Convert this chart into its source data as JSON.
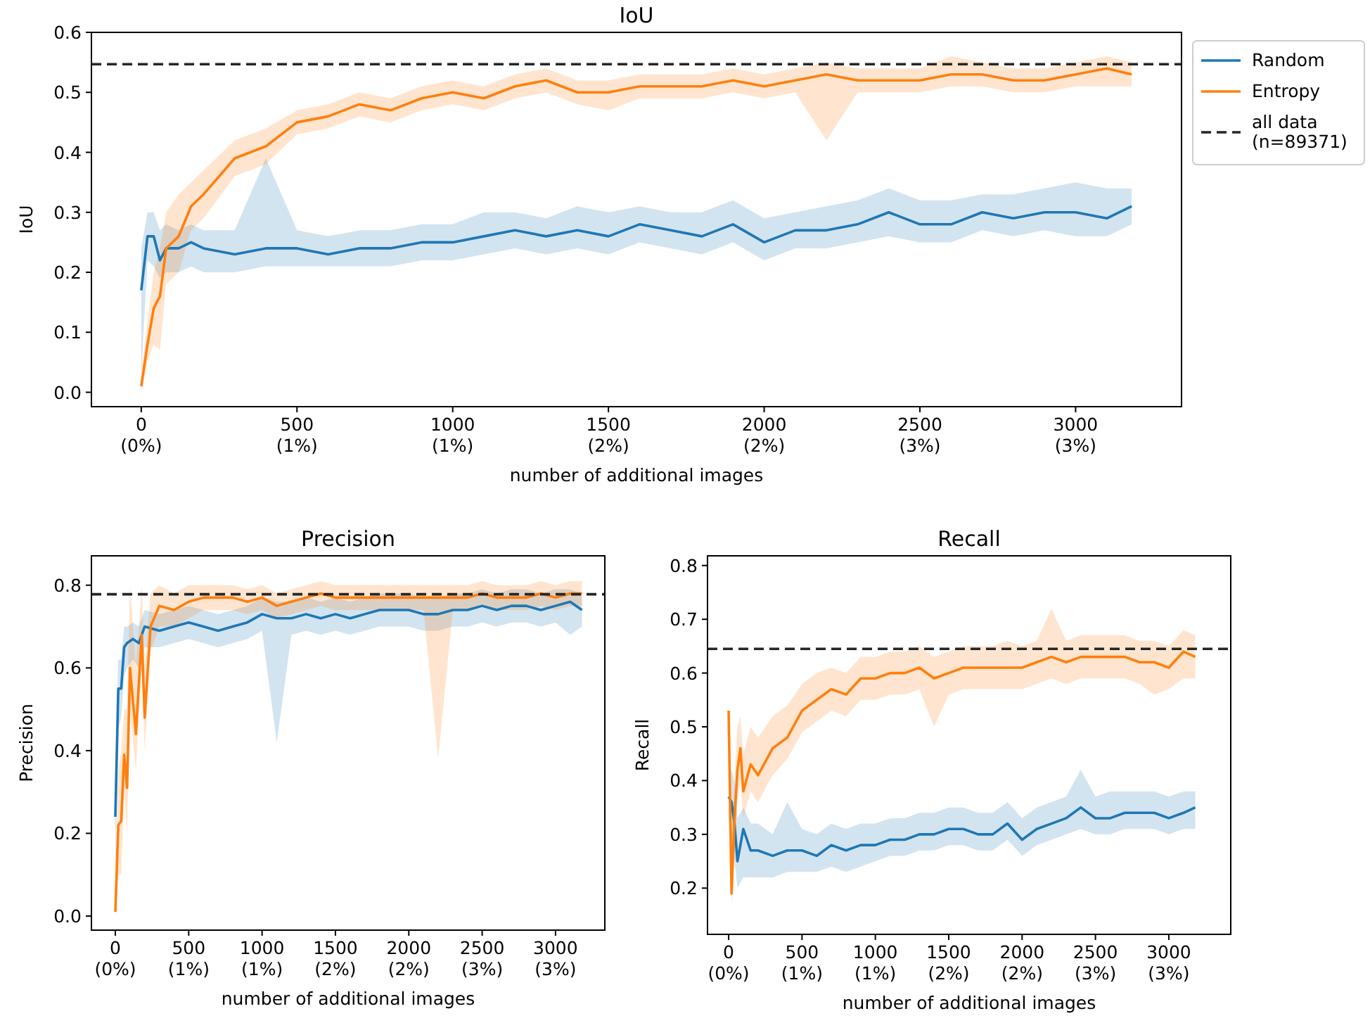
{
  "chart_data": [
    {
      "type": "line",
      "title": "IoU",
      "xlabel": "number of additional images",
      "ylabel": "IoU",
      "xlim": [
        -160,
        3340
      ],
      "ylim": [
        -0.024,
        0.6
      ],
      "xticks": [
        0,
        500,
        1000,
        1500,
        2000,
        2500,
        3000
      ],
      "annotations": [
        "(0%)",
        "(1%)",
        "(1%)",
        "(2%)",
        "(2%)",
        "(3%)",
        "(3%)"
      ],
      "yticks": [
        {
          "value": 0,
          "label": "0.0"
        },
        0.1,
        0.2,
        0.3,
        0.4,
        0.5,
        0.6
      ],
      "grid": false,
      "legend": "right",
      "series": [
        {
          "name": "all data\n(n=89371)",
          "color": "#262626",
          "line_style": "dashed",
          "x": [
            -160,
            3340
          ],
          "values": [
            0.547,
            0.547
          ]
        },
        {
          "name": "Random",
          "color": "#1f77b4",
          "x": [
            0,
            20,
            40,
            60,
            80,
            120,
            160,
            200,
            300,
            400,
            500,
            600,
            700,
            800,
            900,
            1000,
            1100,
            1200,
            1300,
            1400,
            1500,
            1600,
            1700,
            1800,
            1900,
            2000,
            2100,
            2200,
            2300,
            2400,
            2500,
            2600,
            2700,
            2800,
            2900,
            3000,
            3100,
            3180
          ],
          "values": [
            0.17,
            0.26,
            0.26,
            0.22,
            0.24,
            0.24,
            0.25,
            0.24,
            0.23,
            0.24,
            0.24,
            0.23,
            0.24,
            0.24,
            0.25,
            0.25,
            0.26,
            0.27,
            0.26,
            0.27,
            0.26,
            0.28,
            0.27,
            0.26,
            0.28,
            0.25,
            0.27,
            0.27,
            0.28,
            0.3,
            0.28,
            0.28,
            0.3,
            0.29,
            0.3,
            0.3,
            0.29,
            0.31
          ],
          "lower": [
            0.03,
            0.22,
            0.21,
            0.19,
            0.2,
            0.2,
            0.21,
            0.2,
            0.2,
            0.21,
            0.21,
            0.21,
            0.21,
            0.21,
            0.22,
            0.22,
            0.23,
            0.24,
            0.23,
            0.24,
            0.23,
            0.25,
            0.24,
            0.23,
            0.25,
            0.22,
            0.24,
            0.24,
            0.25,
            0.26,
            0.25,
            0.25,
            0.27,
            0.26,
            0.27,
            0.26,
            0.26,
            0.28
          ],
          "upper": [
            0.24,
            0.3,
            0.3,
            0.27,
            0.28,
            0.27,
            0.28,
            0.27,
            0.27,
            0.39,
            0.27,
            0.26,
            0.27,
            0.27,
            0.28,
            0.28,
            0.3,
            0.3,
            0.29,
            0.31,
            0.3,
            0.31,
            0.3,
            0.3,
            0.32,
            0.29,
            0.3,
            0.31,
            0.32,
            0.34,
            0.32,
            0.32,
            0.33,
            0.33,
            0.34,
            0.35,
            0.34,
            0.34
          ]
        },
        {
          "name": "Entropy",
          "color": "#ff7f0e",
          "x": [
            0,
            20,
            40,
            60,
            80,
            120,
            160,
            200,
            300,
            400,
            500,
            600,
            700,
            800,
            900,
            1000,
            1100,
            1200,
            1300,
            1400,
            1500,
            1600,
            1700,
            1800,
            1900,
            2000,
            2100,
            2200,
            2300,
            2400,
            2500,
            2600,
            2700,
            2800,
            2900,
            3000,
            3100,
            3180
          ],
          "values": [
            0.01,
            0.08,
            0.14,
            0.16,
            0.24,
            0.26,
            0.31,
            0.33,
            0.39,
            0.41,
            0.45,
            0.46,
            0.48,
            0.47,
            0.49,
            0.5,
            0.49,
            0.51,
            0.52,
            0.5,
            0.5,
            0.51,
            0.51,
            0.51,
            0.52,
            0.51,
            0.52,
            0.53,
            0.52,
            0.52,
            0.52,
            0.53,
            0.53,
            0.52,
            0.52,
            0.53,
            0.54,
            0.53
          ],
          "lower": [
            0.0,
            0.05,
            0.08,
            0.07,
            0.18,
            0.2,
            0.27,
            0.29,
            0.36,
            0.38,
            0.43,
            0.44,
            0.46,
            0.45,
            0.47,
            0.48,
            0.47,
            0.49,
            0.5,
            0.48,
            0.47,
            0.49,
            0.49,
            0.49,
            0.5,
            0.49,
            0.5,
            0.42,
            0.5,
            0.5,
            0.5,
            0.51,
            0.51,
            0.5,
            0.5,
            0.51,
            0.51,
            0.51
          ],
          "upper": [
            0.03,
            0.12,
            0.2,
            0.24,
            0.3,
            0.33,
            0.35,
            0.37,
            0.42,
            0.44,
            0.47,
            0.48,
            0.5,
            0.49,
            0.51,
            0.52,
            0.51,
            0.53,
            0.54,
            0.52,
            0.52,
            0.53,
            0.53,
            0.53,
            0.54,
            0.53,
            0.54,
            0.55,
            0.54,
            0.54,
            0.54,
            0.56,
            0.55,
            0.54,
            0.54,
            0.55,
            0.56,
            0.55
          ]
        }
      ]
    },
    {
      "type": "line",
      "title": "Precision",
      "xlabel": "number of additional images",
      "ylabel": "Precision",
      "xlim": [
        -163,
        3336
      ],
      "ylim": [
        -0.034,
        0.871
      ],
      "xticks": [
        0,
        500,
        1000,
        1500,
        2000,
        2500,
        3000
      ],
      "annotations": [
        "(0%)",
        "(1%)",
        "(1%)",
        "(2%)",
        "(2%)",
        "(3%)",
        "(3%)"
      ],
      "yticks": [
        {
          "value": 0,
          "label": "0.0"
        },
        0.2,
        0.4,
        0.6,
        0.8
      ],
      "grid": false,
      "ref_lines": [
        {
          "axis": "y",
          "value": 0.778,
          "color": "#262626",
          "line_style": "dashed"
        }
      ],
      "series": [
        {
          "color": "#1f77b4",
          "x": [
            0,
            20,
            40,
            60,
            80,
            120,
            160,
            200,
            300,
            400,
            500,
            600,
            700,
            800,
            900,
            1000,
            1100,
            1200,
            1300,
            1400,
            1500,
            1600,
            1700,
            1800,
            1900,
            2000,
            2100,
            2200,
            2300,
            2400,
            2500,
            2600,
            2700,
            2800,
            2900,
            3000,
            3100,
            3180
          ],
          "values": [
            0.24,
            0.55,
            0.55,
            0.65,
            0.66,
            0.67,
            0.66,
            0.7,
            0.69,
            0.7,
            0.71,
            0.7,
            0.69,
            0.7,
            0.71,
            0.73,
            0.72,
            0.72,
            0.73,
            0.72,
            0.73,
            0.72,
            0.73,
            0.74,
            0.74,
            0.74,
            0.73,
            0.73,
            0.74,
            0.74,
            0.75,
            0.74,
            0.75,
            0.75,
            0.74,
            0.75,
            0.76,
            0.74
          ],
          "lower": [
            0.1,
            0.45,
            0.48,
            0.58,
            0.6,
            0.62,
            0.6,
            0.65,
            0.65,
            0.66,
            0.67,
            0.66,
            0.65,
            0.66,
            0.67,
            0.69,
            0.42,
            0.68,
            0.69,
            0.68,
            0.69,
            0.68,
            0.69,
            0.7,
            0.7,
            0.7,
            0.69,
            0.69,
            0.7,
            0.7,
            0.71,
            0.7,
            0.71,
            0.71,
            0.7,
            0.71,
            0.68,
            0.7
          ],
          "upper": [
            0.35,
            0.62,
            0.62,
            0.7,
            0.7,
            0.71,
            0.7,
            0.74,
            0.73,
            0.74,
            0.75,
            0.74,
            0.73,
            0.74,
            0.75,
            0.77,
            0.76,
            0.76,
            0.77,
            0.76,
            0.77,
            0.76,
            0.77,
            0.78,
            0.78,
            0.78,
            0.77,
            0.77,
            0.78,
            0.78,
            0.79,
            0.78,
            0.79,
            0.79,
            0.78,
            0.79,
            0.79,
            0.78
          ]
        },
        {
          "color": "#ff7f0e",
          "x": [
            0,
            20,
            40,
            60,
            80,
            100,
            140,
            180,
            200,
            240,
            300,
            400,
            500,
            600,
            700,
            800,
            900,
            1000,
            1100,
            1200,
            1300,
            1400,
            1500,
            1600,
            1700,
            1800,
            1900,
            2000,
            2100,
            2200,
            2300,
            2400,
            2500,
            2600,
            2700,
            2800,
            2900,
            3000,
            3100,
            3180
          ],
          "values": [
            0.01,
            0.22,
            0.23,
            0.39,
            0.31,
            0.6,
            0.44,
            0.68,
            0.48,
            0.7,
            0.75,
            0.74,
            0.76,
            0.77,
            0.77,
            0.77,
            0.76,
            0.77,
            0.75,
            0.76,
            0.77,
            0.78,
            0.77,
            0.77,
            0.77,
            0.77,
            0.77,
            0.77,
            0.77,
            0.77,
            0.77,
            0.77,
            0.78,
            0.77,
            0.77,
            0.77,
            0.78,
            0.77,
            0.78,
            0.78
          ],
          "lower": [
            0.0,
            0.1,
            0.1,
            0.3,
            0.2,
            0.5,
            0.35,
            0.6,
            0.4,
            0.64,
            0.7,
            0.7,
            0.72,
            0.74,
            0.74,
            0.74,
            0.73,
            0.74,
            0.72,
            0.73,
            0.74,
            0.75,
            0.74,
            0.74,
            0.74,
            0.74,
            0.74,
            0.74,
            0.74,
            0.38,
            0.74,
            0.74,
            0.75,
            0.74,
            0.74,
            0.74,
            0.75,
            0.74,
            0.75,
            0.75
          ],
          "upper": [
            0.05,
            0.35,
            0.4,
            0.5,
            0.5,
            0.8,
            0.6,
            0.8,
            0.6,
            0.78,
            0.8,
            0.78,
            0.8,
            0.8,
            0.8,
            0.8,
            0.79,
            0.8,
            0.78,
            0.79,
            0.8,
            0.81,
            0.8,
            0.8,
            0.8,
            0.8,
            0.8,
            0.8,
            0.8,
            0.8,
            0.8,
            0.8,
            0.81,
            0.8,
            0.8,
            0.8,
            0.81,
            0.8,
            0.81,
            0.81
          ]
        }
      ]
    },
    {
      "type": "line",
      "title": "Recall",
      "xlabel": "number of additional images",
      "ylabel": "Recall",
      "xlim": [
        -144,
        3422
      ],
      "ylim": [
        0.114,
        0.818
      ],
      "xticks": [
        0,
        500,
        1000,
        1500,
        2000,
        2500,
        3000
      ],
      "annotations": [
        "(0%)",
        "(1%)",
        "(1%)",
        "(2%)",
        "(2%)",
        "(3%)",
        "(3%)"
      ],
      "yticks": [
        0.2,
        0.3,
        0.4,
        0.5,
        0.6,
        0.7,
        0.8
      ],
      "grid": false,
      "ref_lines": [
        {
          "axis": "y",
          "value": 0.645,
          "color": "#262626",
          "line_style": "dashed"
        }
      ],
      "series": [
        {
          "color": "#1f77b4",
          "x": [
            0,
            20,
            40,
            60,
            100,
            150,
            200,
            300,
            400,
            500,
            600,
            700,
            800,
            900,
            1000,
            1100,
            1200,
            1300,
            1400,
            1500,
            1600,
            1700,
            1800,
            1900,
            2000,
            2100,
            2200,
            2300,
            2400,
            2500,
            2600,
            2700,
            2800,
            2900,
            3000,
            3100,
            3180
          ],
          "values": [
            0.37,
            0.36,
            0.32,
            0.25,
            0.31,
            0.27,
            0.27,
            0.26,
            0.27,
            0.27,
            0.26,
            0.28,
            0.27,
            0.28,
            0.28,
            0.29,
            0.29,
            0.3,
            0.3,
            0.31,
            0.31,
            0.3,
            0.3,
            0.32,
            0.29,
            0.31,
            0.32,
            0.33,
            0.35,
            0.33,
            0.33,
            0.34,
            0.34,
            0.34,
            0.33,
            0.34,
            0.35
          ],
          "lower": [
            0.33,
            0.3,
            0.25,
            0.2,
            0.22,
            0.22,
            0.22,
            0.22,
            0.23,
            0.23,
            0.23,
            0.24,
            0.23,
            0.24,
            0.25,
            0.26,
            0.26,
            0.27,
            0.27,
            0.28,
            0.28,
            0.27,
            0.27,
            0.29,
            0.26,
            0.28,
            0.29,
            0.3,
            0.31,
            0.3,
            0.3,
            0.31,
            0.31,
            0.31,
            0.3,
            0.31,
            0.31
          ],
          "upper": [
            0.4,
            0.42,
            0.4,
            0.33,
            0.35,
            0.32,
            0.32,
            0.3,
            0.36,
            0.31,
            0.3,
            0.32,
            0.31,
            0.32,
            0.32,
            0.33,
            0.33,
            0.34,
            0.34,
            0.35,
            0.35,
            0.34,
            0.34,
            0.36,
            0.33,
            0.35,
            0.36,
            0.37,
            0.42,
            0.37,
            0.38,
            0.38,
            0.38,
            0.38,
            0.37,
            0.38,
            0.38
          ]
        },
        {
          "color": "#ff7f0e",
          "x": [
            0,
            10,
            20,
            40,
            60,
            80,
            100,
            150,
            200,
            300,
            400,
            500,
            600,
            700,
            800,
            900,
            1000,
            1100,
            1200,
            1300,
            1400,
            1500,
            1600,
            1700,
            1800,
            1900,
            2000,
            2100,
            2200,
            2300,
            2400,
            2500,
            2600,
            2700,
            2800,
            2900,
            3000,
            3100,
            3180
          ],
          "values": [
            0.53,
            0.36,
            0.19,
            0.33,
            0.42,
            0.46,
            0.38,
            0.43,
            0.41,
            0.46,
            0.48,
            0.53,
            0.55,
            0.57,
            0.56,
            0.59,
            0.59,
            0.6,
            0.6,
            0.61,
            0.59,
            0.6,
            0.61,
            0.61,
            0.61,
            0.61,
            0.61,
            0.62,
            0.63,
            0.62,
            0.63,
            0.63,
            0.63,
            0.63,
            0.62,
            0.62,
            0.61,
            0.64,
            0.63
          ],
          "lower": [
            null,
            0.3,
            0.17,
            0.28,
            0.36,
            0.4,
            0.33,
            0.38,
            0.36,
            0.41,
            0.44,
            0.49,
            0.51,
            0.53,
            0.52,
            0.55,
            0.55,
            0.56,
            0.56,
            0.57,
            0.5,
            0.56,
            0.57,
            0.57,
            0.57,
            0.57,
            0.57,
            0.58,
            0.59,
            0.58,
            0.59,
            0.59,
            0.59,
            0.59,
            0.58,
            0.56,
            0.57,
            0.59,
            0.59
          ],
          "upper": [
            null,
            0.45,
            0.3,
            0.4,
            0.5,
            0.52,
            0.45,
            0.5,
            0.48,
            0.52,
            0.54,
            0.58,
            0.6,
            0.61,
            0.6,
            0.63,
            0.63,
            0.64,
            0.64,
            0.65,
            0.63,
            0.64,
            0.65,
            0.65,
            0.65,
            0.66,
            0.65,
            0.66,
            0.72,
            0.66,
            0.67,
            0.67,
            0.67,
            0.67,
            0.66,
            0.66,
            0.65,
            0.68,
            0.67
          ]
        }
      ]
    }
  ]
}
